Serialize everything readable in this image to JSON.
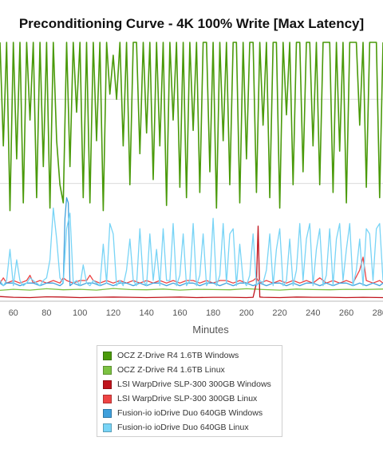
{
  "chart_data": {
    "type": "line",
    "title": "Preconditioning Curve - 4K 100% Write [Max Latency]",
    "xlabel": "Minutes",
    "ylabel": "",
    "xlim": [
      52,
      282
    ],
    "ylim": [
      0,
      100
    ],
    "x_ticks": [
      "60",
      "80",
      "100",
      "120",
      "140",
      "160",
      "180",
      "200",
      "220",
      "240",
      "260",
      "280"
    ],
    "grid": "horizontal",
    "legend_position": "bottom",
    "series": [
      {
        "name": "OCZ Z-Drive R4 1.6TB Windows",
        "color": "#4a9a0a",
        "x": [
          52,
          54,
          56,
          58,
          60,
          62,
          64,
          66,
          68,
          70,
          72,
          74,
          76,
          78,
          80,
          82,
          84,
          86,
          88,
          90,
          92,
          94,
          96,
          98,
          100,
          102,
          104,
          106,
          108,
          110,
          112,
          114,
          116,
          118,
          120,
          122,
          124,
          126,
          128,
          130,
          132,
          134,
          136,
          138,
          140,
          142,
          144,
          146,
          148,
          150,
          152,
          154,
          156,
          158,
          160,
          162,
          164,
          166,
          168,
          170,
          172,
          174,
          176,
          178,
          180,
          182,
          184,
          186,
          188,
          190,
          192,
          194,
          196,
          198,
          200,
          202,
          204,
          206,
          208,
          210,
          212,
          214,
          216,
          218,
          220,
          222,
          224,
          226,
          228,
          230,
          232,
          234,
          236,
          238,
          240,
          242,
          244,
          246,
          248,
          250,
          252,
          254,
          256,
          258,
          260,
          262,
          264,
          266,
          268,
          270,
          272,
          274,
          276,
          278,
          280,
          282
        ],
        "y": [
          100,
          60,
          100,
          35,
          100,
          55,
          100,
          38,
          100,
          70,
          100,
          40,
          100,
          52,
          100,
          36,
          100,
          62,
          45,
          38,
          100,
          52,
          100,
          73,
          100,
          40,
          100,
          38,
          100,
          62,
          100,
          35,
          100,
          80,
          95,
          78,
          100,
          60,
          100,
          45,
          100,
          100,
          57,
          100,
          65,
          100,
          47,
          100,
          60,
          100,
          37,
          100,
          70,
          100,
          44,
          100,
          40,
          100,
          66,
          100,
          42,
          100,
          100,
          50,
          100,
          36,
          100,
          62,
          100,
          45,
          100,
          100,
          38,
          100,
          55,
          100,
          100,
          42,
          100,
          68,
          100,
          40,
          100,
          100,
          36,
          100,
          72,
          100,
          45,
          100,
          100,
          50,
          100,
          100,
          60,
          100,
          45,
          100,
          100,
          100,
          42,
          100,
          58,
          100,
          38,
          100,
          100,
          100,
          68,
          100,
          44,
          100,
          100,
          100,
          40,
          100
        ]
      },
      {
        "name": "OCZ Z-Drive R4 1.6TB Linux",
        "color": "#7cc242",
        "x": [
          52,
          60,
          70,
          80,
          90,
          100,
          110,
          120,
          130,
          140,
          150,
          160,
          170,
          180,
          190,
          200,
          210,
          220,
          230,
          240,
          250,
          260,
          270,
          282
        ],
        "y": [
          4.2,
          4.6,
          4.3,
          4.8,
          4.4,
          4.6,
          4.3,
          4.9,
          4.5,
          4.4,
          4.7,
          4.3,
          4.6,
          4.5,
          4.4,
          4.8,
          4.5,
          4.3,
          4.7,
          4.5,
          4.4,
          4.6,
          4.5,
          4.7
        ]
      },
      {
        "name": "LSI WarpDrive SLP-300 300GB Windows",
        "color": "#c0141d",
        "x": [
          52,
          60,
          70,
          80,
          90,
          100,
          110,
          120,
          130,
          140,
          150,
          160,
          170,
          180,
          190,
          200,
          204,
          206,
          207,
          208,
          210,
          220,
          230,
          240,
          250,
          260,
          270,
          282
        ],
        "y": [
          1.8,
          1.5,
          1.4,
          1.7,
          1.6,
          1.4,
          1.5,
          1.6,
          1.5,
          1.4,
          1.5,
          1.6,
          1.4,
          1.5,
          1.5,
          1.4,
          1.5,
          7,
          29,
          1.6,
          1.5,
          1.4,
          1.6,
          1.5,
          1.5,
          1.4,
          1.5,
          1.4
        ]
      },
      {
        "name": "LSI WarpDrive SLP-300 300GB Linux",
        "color": "#ee4444",
        "x": [
          52,
          54,
          56,
          60,
          64,
          68,
          70,
          72,
          76,
          80,
          84,
          88,
          90,
          92,
          96,
          100,
          104,
          106,
          108,
          112,
          116,
          120,
          124,
          128,
          132,
          136,
          140,
          144,
          148,
          152,
          156,
          160,
          164,
          168,
          172,
          176,
          180,
          184,
          188,
          192,
          196,
          200,
          204,
          206,
          208,
          212,
          216,
          220,
          224,
          228,
          232,
          236,
          240,
          244,
          248,
          252,
          256,
          260,
          264,
          268,
          270,
          272,
          276,
          280,
          282
        ],
        "y": [
          7,
          9,
          7,
          8,
          7,
          8,
          10,
          7,
          8,
          7,
          8,
          7,
          9,
          8,
          7,
          8,
          8,
          10,
          8,
          7,
          8,
          7,
          8,
          7,
          8,
          7,
          8,
          7,
          8,
          7,
          8,
          7,
          8,
          8,
          7,
          8,
          7,
          8,
          8,
          7,
          8,
          7,
          8,
          9,
          7,
          8,
          7,
          8,
          7,
          8,
          7,
          8,
          7,
          9,
          7,
          8,
          7,
          8,
          7,
          12,
          17,
          8,
          7,
          8,
          7
        ]
      },
      {
        "name": "Fusion-io ioDrive Duo 640GB Windows",
        "color": "#3fa0dc",
        "x": [
          52,
          54,
          56,
          60,
          64,
          68,
          72,
          76,
          80,
          84,
          88,
          90,
          91,
          92,
          93,
          94,
          96,
          100,
          104,
          108,
          112,
          116,
          120,
          124,
          128,
          132,
          136,
          140,
          144,
          148,
          152,
          156,
          160,
          164,
          168,
          172,
          176,
          180,
          184,
          188,
          192,
          196,
          200,
          204,
          208,
          212,
          216,
          220,
          224,
          228,
          232,
          236,
          240,
          244,
          248,
          252,
          256,
          260,
          264,
          268,
          272,
          276,
          280,
          282
        ],
        "y": [
          7,
          6,
          7,
          7,
          6,
          7,
          7,
          6,
          7,
          7,
          6,
          7,
          32,
          40,
          38,
          6,
          7,
          6,
          7,
          7,
          6,
          7,
          6,
          7,
          7,
          6,
          7,
          6,
          7,
          7,
          6,
          7,
          6,
          7,
          7,
          6,
          7,
          7,
          6,
          7,
          6,
          7,
          7,
          6,
          7,
          6,
          7,
          7,
          6,
          7,
          6,
          7,
          7,
          6,
          7,
          6,
          7,
          7,
          6,
          7,
          6,
          7,
          6,
          7
        ]
      },
      {
        "name": "Fusion-io ioDrive Duo 640GB Linux",
        "color": "#78d4f6",
        "x": [
          52,
          54,
          56,
          58,
          60,
          62,
          64,
          66,
          68,
          70,
          72,
          74,
          76,
          78,
          80,
          82,
          84,
          86,
          88,
          90,
          92,
          94,
          96,
          98,
          100,
          102,
          104,
          106,
          108,
          110,
          112,
          114,
          116,
          118,
          120,
          122,
          124,
          126,
          128,
          130,
          132,
          134,
          136,
          138,
          140,
          142,
          144,
          146,
          148,
          150,
          152,
          154,
          156,
          158,
          160,
          162,
          164,
          166,
          168,
          170,
          172,
          174,
          176,
          178,
          180,
          182,
          184,
          186,
          188,
          190,
          192,
          194,
          196,
          198,
          200,
          202,
          204,
          206,
          208,
          210,
          212,
          214,
          216,
          218,
          220,
          222,
          224,
          226,
          228,
          230,
          232,
          234,
          236,
          238,
          240,
          242,
          244,
          246,
          248,
          250,
          252,
          254,
          256,
          258,
          260,
          262,
          264,
          266,
          268,
          270,
          272,
          274,
          276,
          278,
          280,
          282
        ],
        "y": [
          8,
          6,
          8,
          20,
          6,
          16,
          8,
          6,
          7,
          9,
          8,
          7,
          6,
          8,
          9,
          16,
          36,
          24,
          9,
          7,
          28,
          34,
          7,
          8,
          6,
          14,
          7,
          6,
          8,
          7,
          6,
          22,
          7,
          30,
          26,
          6,
          8,
          6,
          12,
          24,
          8,
          6,
          28,
          8,
          6,
          26,
          8,
          20,
          6,
          28,
          8,
          8,
          30,
          6,
          10,
          26,
          6,
          8,
          30,
          6,
          10,
          26,
          6,
          8,
          32,
          6,
          10,
          30,
          7,
          26,
          28,
          6,
          22,
          8,
          6,
          10,
          26,
          6,
          8,
          7,
          12,
          26,
          6,
          20,
          28,
          6,
          8,
          24,
          6,
          12,
          30,
          8,
          24,
          30,
          6,
          20,
          28,
          6,
          10,
          28,
          6,
          24,
          30,
          8,
          20,
          30,
          6,
          12,
          24,
          6,
          28,
          26,
          8,
          28,
          30,
          8
        ]
      }
    ]
  }
}
